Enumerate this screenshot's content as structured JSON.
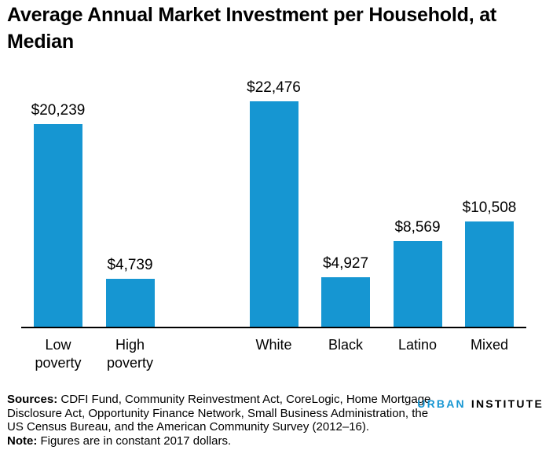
{
  "title": "Average Annual Market Investment per Household, at Median",
  "chart_data": {
    "type": "bar",
    "title": "Average Annual Market Investment per Household, at Median",
    "categories": [
      "Low poverty",
      "High poverty",
      "White",
      "Black",
      "Latino",
      "Mixed"
    ],
    "values": [
      20239,
      4739,
      22476,
      4927,
      8569,
      10508
    ],
    "value_labels": [
      "$20,239",
      "$4,739",
      "$22,476",
      "$4,927",
      "$8,569",
      "$10,508"
    ],
    "xlabel": "",
    "ylabel": "",
    "ylim": [
      0,
      22476
    ],
    "grid": "off",
    "legend": "none",
    "bar_color": "#1696d2",
    "layout_hints": {
      "group_gap_after_index": 1,
      "groups": [
        [
          "Low poverty",
          "High poverty"
        ],
        [
          "White",
          "Black",
          "Latino",
          "Mixed"
        ]
      ]
    }
  },
  "footer": {
    "sources_label": "Sources:",
    "sources_text": " CDFI Fund, Community Reinvestment Act, CoreLogic, Home Mortgage Disclosure Act, Opportunity Finance Network, Small Business Administration, the US Census Bureau, and the American Community Survey (2012–16).",
    "note_label": "Note:",
    "note_text": " Figures are in constant 2017 dollars."
  },
  "logo": {
    "urban": "URBAN",
    "institute": "INSTITUTE",
    "urban_color": "#1696d2",
    "institute_color": "#000000"
  }
}
